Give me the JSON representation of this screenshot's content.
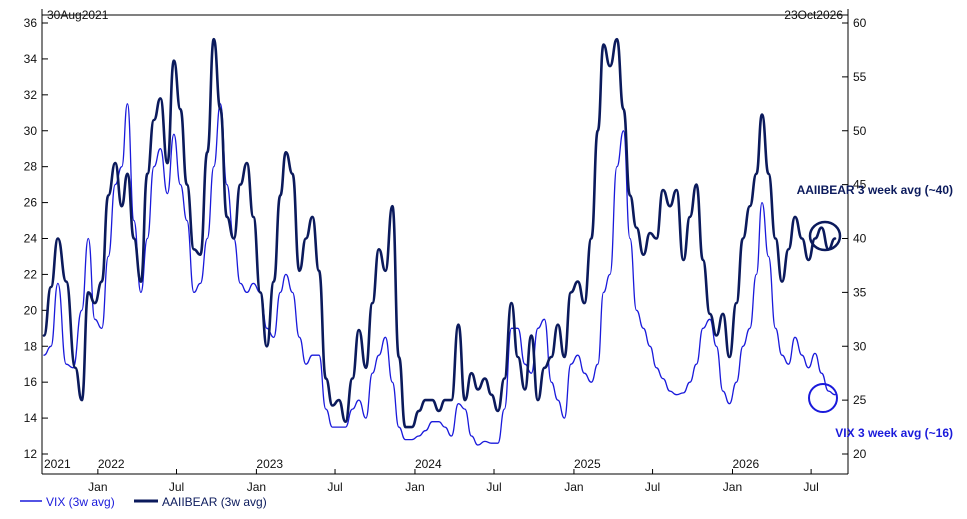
{
  "chart_data": {
    "type": "line",
    "start_label": "30Aug2021",
    "end_label": "23Oct2026",
    "left_axis": {
      "ticks": [
        12,
        14,
        16,
        18,
        20,
        22,
        24,
        26,
        28,
        30,
        32,
        34,
        36
      ],
      "range": [
        12,
        36
      ]
    },
    "right_axis": {
      "ticks": [
        20,
        25,
        30,
        35,
        40,
        45,
        50,
        55,
        60
      ],
      "range": [
        20,
        60
      ]
    },
    "x_axis": {
      "month_labels": [
        {
          "label": "Jan",
          "date": "2022-01-01"
        },
        {
          "label": "Jul",
          "date": "2022-07-01"
        },
        {
          "label": "Jan",
          "date": "2023-01-01"
        },
        {
          "label": "Jul",
          "date": "2023-07-01"
        },
        {
          "label": "Jan",
          "date": "2024-01-01"
        },
        {
          "label": "Jul",
          "date": "2024-07-01"
        },
        {
          "label": "Jan",
          "date": "2025-01-01"
        },
        {
          "label": "Jul",
          "date": "2025-07-01"
        },
        {
          "label": "Jan",
          "date": "2026-01-01"
        },
        {
          "label": "Jul",
          "date": "2026-07-01"
        }
      ],
      "year_labels": [
        {
          "label": "2021",
          "date": "2021-08-30"
        },
        {
          "label": "2022",
          "date": "2022-01-01"
        },
        {
          "label": "2023",
          "date": "2023-01-01"
        },
        {
          "label": "2024",
          "date": "2024-01-01"
        },
        {
          "label": "2025",
          "date": "2025-01-01"
        },
        {
          "label": "2026",
          "date": "2026-01-01"
        }
      ]
    },
    "series": [
      {
        "name": "VIX (3w avg)",
        "color": "#1a1adb",
        "axis": "left",
        "points": [
          [
            "2021-08-30",
            17.5
          ],
          [
            "2021-09-15",
            18.0
          ],
          [
            "2021-10-01",
            21.5
          ],
          [
            "2021-10-20",
            17.0
          ],
          [
            "2021-11-05",
            16.8
          ],
          [
            "2021-11-25",
            20.0
          ],
          [
            "2021-12-10",
            24.0
          ],
          [
            "2021-12-25",
            19.5
          ],
          [
            "2022-01-10",
            19.0
          ],
          [
            "2022-01-25",
            23.0
          ],
          [
            "2022-02-10",
            27.0
          ],
          [
            "2022-02-25",
            28.0
          ],
          [
            "2022-03-10",
            31.5
          ],
          [
            "2022-03-25",
            25.0
          ],
          [
            "2022-04-10",
            21.0
          ],
          [
            "2022-04-25",
            24.0
          ],
          [
            "2022-05-10",
            28.0
          ],
          [
            "2022-05-25",
            29.0
          ],
          [
            "2022-06-10",
            26.5
          ],
          [
            "2022-06-25",
            29.8
          ],
          [
            "2022-07-10",
            27.0
          ],
          [
            "2022-07-25",
            25.0
          ],
          [
            "2022-08-10",
            21.0
          ],
          [
            "2022-08-25",
            21.5
          ],
          [
            "2022-09-10",
            24.0
          ],
          [
            "2022-09-25",
            28.0
          ],
          [
            "2022-10-10",
            31.5
          ],
          [
            "2022-10-25",
            27.0
          ],
          [
            "2022-11-10",
            24.0
          ],
          [
            "2022-11-25",
            21.5
          ],
          [
            "2022-12-10",
            21.0
          ],
          [
            "2022-12-25",
            21.5
          ],
          [
            "2023-01-10",
            21.0
          ],
          [
            "2023-01-25",
            19.0
          ],
          [
            "2023-02-10",
            18.5
          ],
          [
            "2023-02-25",
            21.0
          ],
          [
            "2023-03-10",
            22.0
          ],
          [
            "2023-03-25",
            21.0
          ],
          [
            "2023-04-10",
            18.5
          ],
          [
            "2023-04-25",
            17.0
          ],
          [
            "2023-05-10",
            17.5
          ],
          [
            "2023-05-25",
            17.5
          ],
          [
            "2023-06-10",
            14.5
          ],
          [
            "2023-06-25",
            13.5
          ],
          [
            "2023-07-10",
            13.5
          ],
          [
            "2023-07-25",
            13.5
          ],
          [
            "2023-08-10",
            14.5
          ],
          [
            "2023-08-25",
            15.0
          ],
          [
            "2023-09-10",
            14.0
          ],
          [
            "2023-09-25",
            16.5
          ],
          [
            "2023-10-10",
            17.5
          ],
          [
            "2023-10-25",
            18.5
          ],
          [
            "2023-11-10",
            16.0
          ],
          [
            "2023-11-25",
            13.5
          ],
          [
            "2023-12-10",
            12.8
          ],
          [
            "2023-12-25",
            12.8
          ],
          [
            "2024-01-10",
            13.0
          ],
          [
            "2024-01-25",
            13.3
          ],
          [
            "2024-02-10",
            13.8
          ],
          [
            "2024-02-25",
            13.8
          ],
          [
            "2024-03-10",
            13.5
          ],
          [
            "2024-03-25",
            13.0
          ],
          [
            "2024-04-10",
            14.8
          ],
          [
            "2024-04-25",
            14.5
          ],
          [
            "2024-05-10",
            13.0
          ],
          [
            "2024-05-25",
            12.5
          ],
          [
            "2024-06-10",
            12.7
          ],
          [
            "2024-06-25",
            12.6
          ],
          [
            "2024-07-10",
            12.6
          ],
          [
            "2024-07-25",
            14.5
          ],
          [
            "2024-08-10",
            19.0
          ],
          [
            "2024-08-25",
            19.0
          ],
          [
            "2024-09-10",
            17.0
          ],
          [
            "2024-09-25",
            16.5
          ],
          [
            "2024-10-10",
            19.0
          ],
          [
            "2024-10-25",
            19.5
          ],
          [
            "2024-11-10",
            16.0
          ],
          [
            "2024-11-25",
            15.0
          ],
          [
            "2024-12-10",
            14.0
          ],
          [
            "2024-12-25",
            17.0
          ],
          [
            "2025-01-10",
            17.5
          ],
          [
            "2025-01-25",
            16.5
          ],
          [
            "2025-02-10",
            16.0
          ],
          [
            "2025-02-25",
            17.0
          ],
          [
            "2025-03-10",
            21.0
          ],
          [
            "2025-03-25",
            22.0
          ],
          [
            "2025-04-10",
            28.0
          ],
          [
            "2025-04-25",
            30.0
          ],
          [
            "2025-05-10",
            24.0
          ],
          [
            "2025-05-25",
            20.0
          ],
          [
            "2025-06-10",
            19.0
          ],
          [
            "2025-06-25",
            18.0
          ],
          [
            "2025-07-10",
            16.8
          ],
          [
            "2025-07-25",
            16.2
          ],
          [
            "2025-08-10",
            15.5
          ],
          [
            "2025-08-25",
            15.3
          ],
          [
            "2025-09-10",
            15.4
          ],
          [
            "2025-09-25",
            16.0
          ],
          [
            "2025-10-10",
            17.0
          ],
          [
            "2025-10-25",
            19.0
          ],
          [
            "2025-11-10",
            19.5
          ],
          [
            "2025-11-25",
            18.0
          ],
          [
            "2025-12-10",
            15.5
          ],
          [
            "2025-12-25",
            14.8
          ],
          [
            "2026-01-10",
            16.0
          ],
          [
            "2026-01-25",
            18.0
          ],
          [
            "2026-02-10",
            19.0
          ],
          [
            "2026-02-25",
            22.0
          ],
          [
            "2026-03-10",
            26.0
          ],
          [
            "2026-03-25",
            23.0
          ],
          [
            "2026-04-10",
            19.0
          ],
          [
            "2026-04-25",
            17.5
          ],
          [
            "2026-05-10",
            17.0
          ],
          [
            "2026-05-25",
            18.5
          ],
          [
            "2026-06-10",
            17.5
          ],
          [
            "2026-06-25",
            16.8
          ],
          [
            "2026-07-10",
            17.6
          ],
          [
            "2026-07-25",
            16.5
          ],
          [
            "2026-08-10",
            15.5
          ],
          [
            "2026-08-25",
            15.3
          ]
        ]
      },
      {
        "name": "AAIIBEAR (3w avg)",
        "color": "#0b1a5c",
        "axis": "right",
        "points": [
          [
            "2021-08-30",
            31.0
          ],
          [
            "2021-09-15",
            35.5
          ],
          [
            "2021-10-01",
            40.0
          ],
          [
            "2021-10-20",
            36.0
          ],
          [
            "2021-11-10",
            28.0
          ],
          [
            "2021-11-25",
            25.0
          ],
          [
            "2021-12-10",
            35.0
          ],
          [
            "2021-12-25",
            34.0
          ],
          [
            "2022-01-10",
            36.0
          ],
          [
            "2022-01-25",
            44.0
          ],
          [
            "2022-02-10",
            47.0
          ],
          [
            "2022-02-25",
            43.0
          ],
          [
            "2022-03-10",
            46.0
          ],
          [
            "2022-03-25",
            40.0
          ],
          [
            "2022-04-10",
            36.0
          ],
          [
            "2022-04-25",
            46.0
          ],
          [
            "2022-05-10",
            51.0
          ],
          [
            "2022-05-25",
            53.0
          ],
          [
            "2022-06-10",
            47.0
          ],
          [
            "2022-06-25",
            56.5
          ],
          [
            "2022-07-10",
            52.0
          ],
          [
            "2022-07-25",
            45.0
          ],
          [
            "2022-08-10",
            39.0
          ],
          [
            "2022-08-25",
            38.5
          ],
          [
            "2022-09-10",
            48.0
          ],
          [
            "2022-09-25",
            58.5
          ],
          [
            "2022-10-10",
            52.0
          ],
          [
            "2022-10-25",
            42.0
          ],
          [
            "2022-11-10",
            40.0
          ],
          [
            "2022-11-25",
            45.0
          ],
          [
            "2022-12-10",
            47.0
          ],
          [
            "2022-12-25",
            42.0
          ],
          [
            "2023-01-10",
            35.0
          ],
          [
            "2023-01-25",
            30.0
          ],
          [
            "2023-02-10",
            36.0
          ],
          [
            "2023-02-25",
            44.0
          ],
          [
            "2023-03-10",
            48.0
          ],
          [
            "2023-03-25",
            46.0
          ],
          [
            "2023-04-10",
            37.0
          ],
          [
            "2023-04-25",
            40.0
          ],
          [
            "2023-05-10",
            42.0
          ],
          [
            "2023-05-25",
            37.0
          ],
          [
            "2023-06-10",
            27.0
          ],
          [
            "2023-06-25",
            24.5
          ],
          [
            "2023-07-10",
            25.0
          ],
          [
            "2023-07-25",
            23.0
          ],
          [
            "2023-08-10",
            27.0
          ],
          [
            "2023-08-25",
            31.5
          ],
          [
            "2023-09-10",
            28.0
          ],
          [
            "2023-09-25",
            34.0
          ],
          [
            "2023-10-10",
            39.0
          ],
          [
            "2023-10-25",
            37.0
          ],
          [
            "2023-11-10",
            43.0
          ],
          [
            "2023-11-25",
            29.0
          ],
          [
            "2023-12-10",
            22.5
          ],
          [
            "2023-12-25",
            22.5
          ],
          [
            "2024-01-10",
            24.0
          ],
          [
            "2024-01-25",
            25.0
          ],
          [
            "2024-02-10",
            25.0
          ],
          [
            "2024-02-25",
            24.0
          ],
          [
            "2024-03-10",
            25.0
          ],
          [
            "2024-03-25",
            25.0
          ],
          [
            "2024-04-10",
            32.0
          ],
          [
            "2024-04-25",
            25.0
          ],
          [
            "2024-05-10",
            27.5
          ],
          [
            "2024-05-25",
            26.0
          ],
          [
            "2024-06-10",
            27.0
          ],
          [
            "2024-06-25",
            25.5
          ],
          [
            "2024-07-10",
            24.0
          ],
          [
            "2024-07-25",
            27.0
          ],
          [
            "2024-08-10",
            34.0
          ],
          [
            "2024-08-25",
            29.0
          ],
          [
            "2024-09-10",
            26.0
          ],
          [
            "2024-09-25",
            31.0
          ],
          [
            "2024-10-10",
            25.0
          ],
          [
            "2024-10-25",
            28.0
          ],
          [
            "2024-11-10",
            29.0
          ],
          [
            "2024-11-25",
            32.0
          ],
          [
            "2024-12-10",
            29.0
          ],
          [
            "2024-12-25",
            35.0
          ],
          [
            "2025-01-10",
            36.0
          ],
          [
            "2025-01-25",
            34.0
          ],
          [
            "2025-02-10",
            40.0
          ],
          [
            "2025-02-25",
            50.0
          ],
          [
            "2025-03-10",
            58.0
          ],
          [
            "2025-03-25",
            56.0
          ],
          [
            "2025-04-10",
            58.5
          ],
          [
            "2025-04-25",
            52.0
          ],
          [
            "2025-05-10",
            44.0
          ],
          [
            "2025-05-25",
            41.0
          ],
          [
            "2025-06-10",
            38.5
          ],
          [
            "2025-06-25",
            40.5
          ],
          [
            "2025-07-10",
            40.0
          ],
          [
            "2025-07-25",
            44.5
          ],
          [
            "2025-08-10",
            43.0
          ],
          [
            "2025-08-25",
            44.5
          ],
          [
            "2025-09-10",
            38.0
          ],
          [
            "2025-09-25",
            42.0
          ],
          [
            "2025-10-10",
            45.0
          ],
          [
            "2025-10-25",
            38.0
          ],
          [
            "2025-11-10",
            33.0
          ],
          [
            "2025-11-25",
            31.0
          ],
          [
            "2025-12-10",
            33.0
          ],
          [
            "2025-12-25",
            29.0
          ],
          [
            "2026-01-10",
            34.0
          ],
          [
            "2026-01-25",
            40.0
          ],
          [
            "2026-02-10",
            43.0
          ],
          [
            "2026-02-25",
            46.0
          ],
          [
            "2026-03-10",
            51.5
          ],
          [
            "2026-03-25",
            46.0
          ],
          [
            "2026-04-10",
            40.0
          ],
          [
            "2026-04-25",
            36.0
          ],
          [
            "2026-05-10",
            39.0
          ],
          [
            "2026-05-25",
            42.0
          ],
          [
            "2026-06-10",
            40.0
          ],
          [
            "2026-06-25",
            38.0
          ],
          [
            "2026-07-10",
            40.0
          ],
          [
            "2026-07-25",
            41.0
          ],
          [
            "2026-08-10",
            39.0
          ],
          [
            "2026-08-25",
            40.0
          ]
        ]
      }
    ],
    "annotations": [
      {
        "text": "AAIIBEAR 3 week avg (~40)",
        "color": "#0b1a5c"
      },
      {
        "text": "VIX 3 week avg (~16)",
        "color": "#1a1adb"
      }
    ]
  }
}
